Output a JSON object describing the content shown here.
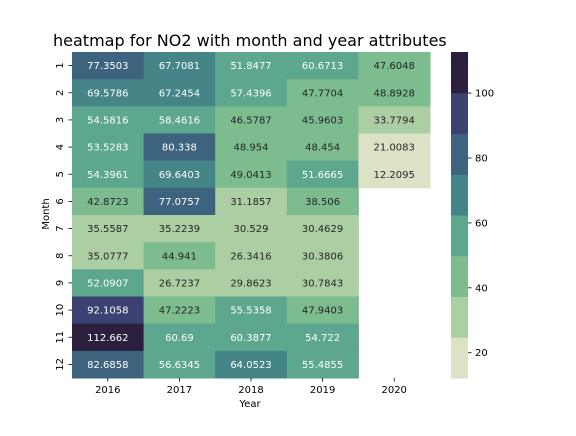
{
  "chart_data": {
    "type": "heatmap",
    "title": "heatmap for NO2 with month and year attributes",
    "xlabel": "Year",
    "ylabel": "Month",
    "x_categories": [
      "2016",
      "2017",
      "2018",
      "2019",
      "2020"
    ],
    "y_categories": [
      "1",
      "2",
      "3",
      "4",
      "5",
      "6",
      "7",
      "8",
      "9",
      "10",
      "11",
      "12"
    ],
    "values": [
      [
        77.3503,
        67.7081,
        51.8477,
        60.6713,
        47.6048
      ],
      [
        69.5786,
        67.2454,
        57.4396,
        47.7704,
        48.8928
      ],
      [
        54.5816,
        58.4616,
        46.5787,
        45.9603,
        33.7794
      ],
      [
        53.5283,
        80.338,
        48.954,
        48.454,
        21.0083
      ],
      [
        54.3961,
        69.6403,
        49.0413,
        51.6665,
        12.2095
      ],
      [
        42.8723,
        77.0757,
        31.1857,
        38.506,
        null
      ],
      [
        35.5587,
        35.2239,
        30.529,
        30.4629,
        null
      ],
      [
        35.0777,
        44.941,
        26.3416,
        30.3806,
        null
      ],
      [
        52.0907,
        26.7237,
        29.8623,
        30.7843,
        null
      ],
      [
        92.1058,
        47.2223,
        55.5358,
        47.9403,
        null
      ],
      [
        112.662,
        60.69,
        60.3877,
        54.722,
        null
      ],
      [
        82.6858,
        56.6345,
        64.0523,
        55.4855,
        null
      ]
    ],
    "value_labels": [
      [
        "77.3503",
        "67.7081",
        "51.8477",
        "60.6713",
        "47.6048"
      ],
      [
        "69.5786",
        "67.2454",
        "57.4396",
        "47.7704",
        "48.8928"
      ],
      [
        "54.5816",
        "58.4616",
        "46.5787",
        "45.9603",
        "33.7794"
      ],
      [
        "53.5283",
        "80.338",
        "48.954",
        "48.454",
        "21.0083"
      ],
      [
        "54.3961",
        "69.6403",
        "49.0413",
        "51.6665",
        "12.2095"
      ],
      [
        "42.8723",
        "77.0757",
        "31.1857",
        "38.506",
        ""
      ],
      [
        "35.5587",
        "35.2239",
        "30.529",
        "30.4629",
        ""
      ],
      [
        "35.0777",
        "44.941",
        "26.3416",
        "30.3806",
        ""
      ],
      [
        "52.0907",
        "26.7237",
        "29.8623",
        "30.7843",
        ""
      ],
      [
        "92.1058",
        "47.2223",
        "55.5358",
        "47.9403",
        ""
      ],
      [
        "112.662",
        "60.69",
        "60.3877",
        "54.722",
        ""
      ],
      [
        "82.6858",
        "56.6345",
        "64.0523",
        "55.4855",
        ""
      ]
    ],
    "colorbar": {
      "range": [
        12.2095,
        112.662
      ],
      "ticks": [
        20,
        40,
        60,
        80,
        100
      ],
      "tick_labels": [
        "20",
        "40",
        "60",
        "80",
        "100"
      ],
      "bins": 8,
      "colors": [
        "#dbe2c6",
        "#abcea2",
        "#7cbc8e",
        "#5ca78d",
        "#458487",
        "#3e637f",
        "#3b4272",
        "#2c1e3d"
      ]
    },
    "grid": false,
    "missing_color": "#ffffff",
    "text_colors": {
      "light": "#ffffff",
      "dark": "#262626"
    }
  }
}
